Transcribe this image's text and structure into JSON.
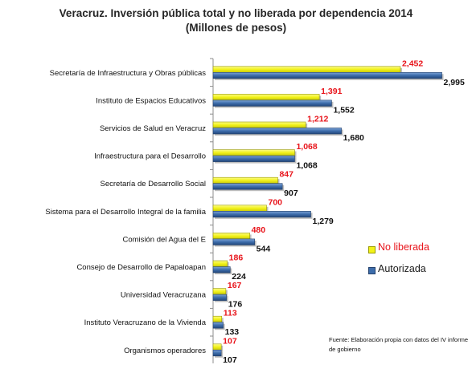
{
  "chart_data": {
    "type": "bar",
    "orientation": "horizontal",
    "title": "Veracruz. Inversión pública total y no liberada por dependencia 2014",
    "subtitle": "(Millones de pesos)",
    "categories": [
      "Secretaría de Infraestructura y Obras públicas",
      "Instituto de Espacios Educativos",
      "Servicios de Salud en Veracruz",
      "Infraestructura para el Desarrollo",
      "Secretaría de Desarrollo Social",
      "Sistema para el Desarrollo Integral de la familia",
      "Comisión del Agua del E",
      "Consejo de Desarrollo de Papaloapan",
      "Universidad Veracruzana",
      "Instituto Veracruzano de la Vivienda",
      "Organismos operadores"
    ],
    "series": [
      {
        "name": "No liberada",
        "color": "#f2f21a",
        "values": [
          2452,
          1391,
          1212,
          1068,
          847,
          700,
          480,
          186,
          167,
          113,
          107
        ],
        "labels": [
          "2,452",
          "1,391",
          "1,212",
          "1,068",
          "847",
          "700",
          "480",
          "186",
          "167",
          "113",
          "107"
        ]
      },
      {
        "name": "Autorizada",
        "color": "#3d6dab",
        "values": [
          2995,
          1552,
          1680,
          1068,
          907,
          1279,
          544,
          224,
          176,
          133,
          107
        ],
        "labels": [
          "2,995",
          "1,552",
          "1,680",
          "1,068",
          "907",
          "1,279",
          "544",
          "224",
          "176",
          "133",
          "107"
        ]
      }
    ],
    "xlim": [
      0,
      3000
    ],
    "grid": false,
    "legend_position": "right",
    "source_note": "Fuente: Elaboración propia con datos del IV informe de gobierno"
  }
}
